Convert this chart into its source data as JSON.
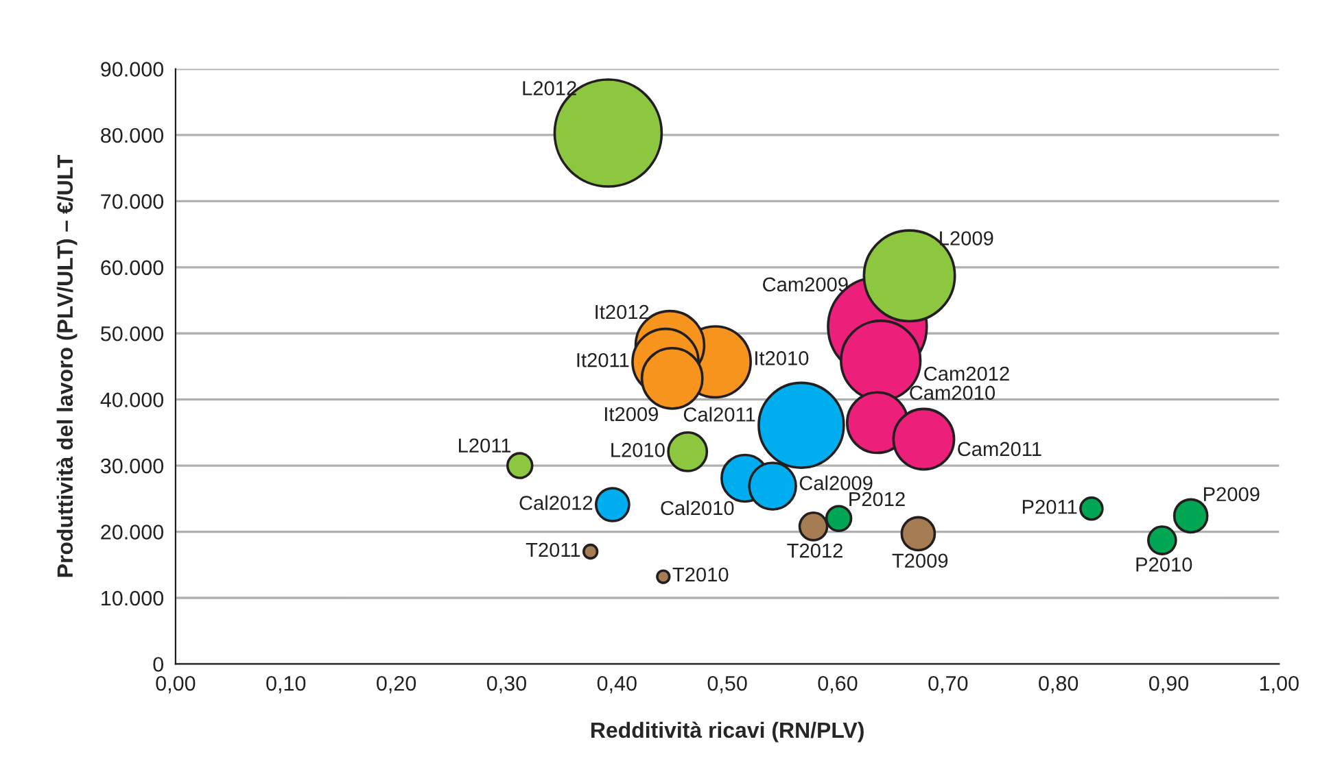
{
  "chart_data": {
    "type": "bubble",
    "xlabel": "Redditività ricavi (RN/PLV)",
    "ylabel": "Produttività del lavoro (PLV/ULT) – €/ULT",
    "x": [
      0.392,
      0.665,
      0.636,
      0.639,
      0.636,
      0.678,
      0.448,
      0.444,
      0.45,
      0.489,
      0.567,
      0.516,
      0.541,
      0.396,
      0.464,
      0.312,
      0.376,
      0.442,
      0.578,
      0.601,
      0.673,
      0.83,
      0.92,
      0.894
    ],
    "values": [
      80300,
      58700,
      51000,
      45900,
      36500,
      34000,
      48200,
      45700,
      43200,
      45700,
      36100,
      28100,
      26900,
      24100,
      32100,
      30000,
      17000,
      13200,
      20800,
      22000,
      19700,
      23500,
      22400,
      18700
    ],
    "sizes": [
      1,
      0.72,
      0.85,
      0.55,
      0.32,
      0.32,
      0.41,
      0.38,
      0.32,
      0.44,
      0.63,
      0.19,
      0.19,
      0.095,
      0.13,
      0.053,
      0.016,
      0.013,
      0.066,
      0.053,
      0.095,
      0.042,
      0.095,
      0.066
    ],
    "colors": [
      "#8dc63f",
      "#8dc63f",
      "#ec1f7a",
      "#ec1f7a",
      "#ec1f7a",
      "#ec1f7a",
      "#f7941d",
      "#f7941d",
      "#f7941d",
      "#f7941d",
      "#00aeef",
      "#00aeef",
      "#00aeef",
      "#00aeef",
      "#8dc63f",
      "#8dc63f",
      "#a67c52",
      "#a67c52",
      "#a67c52",
      "#00a651",
      "#a67c52",
      "#00a651",
      "#00a651",
      "#00a651"
    ],
    "annotations": [
      {
        "text": "L2012",
        "x": 0.392,
        "y": 80300
      },
      {
        "text": "L2009",
        "x": 0.665,
        "y": 58700
      },
      {
        "text": "Cam2009",
        "x": 0.636,
        "y": 51000
      },
      {
        "text": "Cam2012",
        "x": 0.639,
        "y": 45900
      },
      {
        "text": "Cam2010",
        "x": 0.636,
        "y": 36500
      },
      {
        "text": "Cam2011",
        "x": 0.678,
        "y": 34000
      },
      {
        "text": "It2012",
        "x": 0.448,
        "y": 48200
      },
      {
        "text": "It2011",
        "x": 0.444,
        "y": 45700
      },
      {
        "text": "It2009",
        "x": 0.45,
        "y": 43200
      },
      {
        "text": "It2010",
        "x": 0.489,
        "y": 45700
      },
      {
        "text": "Cal2011",
        "x": 0.567,
        "y": 36100
      },
      {
        "text": "Cal2010",
        "x": 0.516,
        "y": 28100
      },
      {
        "text": "Cal2009",
        "x": 0.541,
        "y": 26900
      },
      {
        "text": "Cal2012",
        "x": 0.396,
        "y": 24100
      },
      {
        "text": "L2010",
        "x": 0.464,
        "y": 32100
      },
      {
        "text": "L2011",
        "x": 0.312,
        "y": 30000
      },
      {
        "text": "T2011",
        "x": 0.376,
        "y": 17000
      },
      {
        "text": "T2010",
        "x": 0.442,
        "y": 13200
      },
      {
        "text": "T2012",
        "x": 0.578,
        "y": 20800
      },
      {
        "text": "P2012",
        "x": 0.601,
        "y": 22000
      },
      {
        "text": "T2009",
        "x": 0.673,
        "y": 19700
      },
      {
        "text": "P2011",
        "x": 0.83,
        "y": 23500
      },
      {
        "text": "P2009",
        "x": 0.92,
        "y": 22400
      },
      {
        "text": "P2010",
        "x": 0.894,
        "y": 18700
      }
    ],
    "xlim": [
      0,
      1
    ],
    "ylim": [
      0,
      90000
    ],
    "xticks": [
      {
        "value": 0,
        "label": "0,00"
      },
      {
        "value": 0.1,
        "label": "0,10"
      },
      {
        "value": 0.2,
        "label": "0,20"
      },
      {
        "value": 0.3,
        "label": "0,30"
      },
      {
        "value": 0.4,
        "label": "0,40"
      },
      {
        "value": 0.5,
        "label": "0,50"
      },
      {
        "value": 0.6,
        "label": "0,60"
      },
      {
        "value": 0.7,
        "label": "0,70"
      },
      {
        "value": 0.8,
        "label": "0,80"
      },
      {
        "value": 0.9,
        "label": "0,90"
      },
      {
        "value": 1,
        "label": "1,00"
      }
    ],
    "yticks": [
      0,
      {
        "value": 10000,
        "label": "10.000"
      },
      {
        "value": 20000,
        "label": "20.000"
      },
      {
        "value": 30000,
        "label": "30.000"
      },
      {
        "value": 40000,
        "label": "40.000"
      },
      {
        "value": 50000,
        "label": "50.000"
      },
      {
        "value": 60000,
        "label": "60.000"
      },
      {
        "value": 70000,
        "label": "70.000"
      },
      {
        "value": 80000,
        "label": "80.000"
      },
      {
        "value": 90000,
        "label": "90.000"
      }
    ],
    "grid": "y"
  }
}
